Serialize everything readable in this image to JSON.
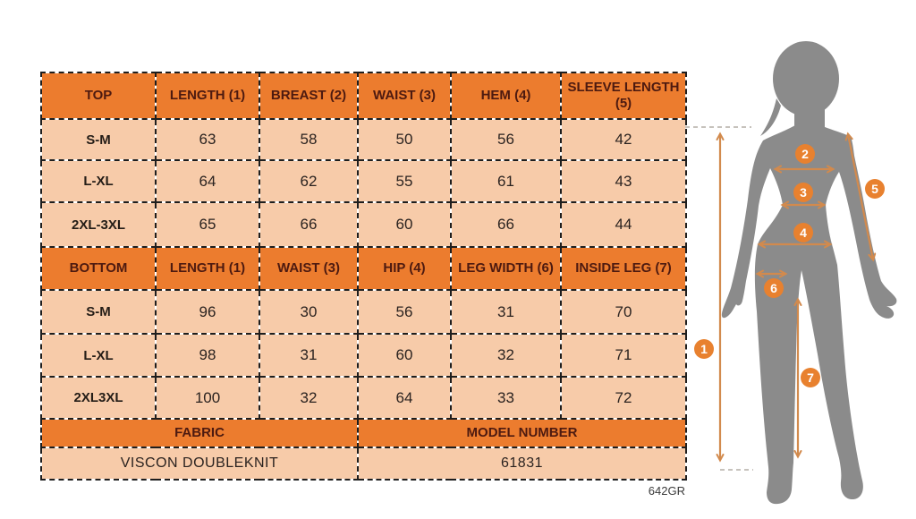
{
  "page": {
    "code": "642GR"
  },
  "colors": {
    "header_bg": "#ec7c2e",
    "cell_bg": "#f7cba9",
    "header_text": "#4d1a10",
    "cell_text": "#2b2320",
    "marker_circle": "#e8812f",
    "arrow": "#d28a4d",
    "silhouette": "#8b8b8b"
  },
  "size_chart": {
    "top": {
      "headers": [
        "TOP",
        "LENGTH (1)",
        "BREAST (2)",
        "WAIST (3)",
        "HEM (4)",
        "SLEEVE LENGTH (5)"
      ],
      "rows": [
        [
          "S-M",
          "63",
          "58",
          "50",
          "56",
          "42"
        ],
        [
          "L-XL",
          "64",
          "62",
          "55",
          "61",
          "43"
        ],
        [
          "2XL-3XL",
          "65",
          "66",
          "60",
          "66",
          "44"
        ]
      ]
    },
    "bottom": {
      "headers": [
        "BOTTOM",
        "LENGTH (1)",
        "WAIST (3)",
        "HIP (4)",
        "LEG WIDTH (6)",
        "INSIDE LEG (7)"
      ],
      "rows": [
        [
          "S-M",
          "96",
          "30",
          "56",
          "31",
          "70"
        ],
        [
          "L-XL",
          "98",
          "31",
          "60",
          "32",
          "71"
        ],
        [
          "2XL3XL",
          "100",
          "32",
          "64",
          "33",
          "72"
        ]
      ]
    },
    "footer": {
      "fabric_label": "FABRIC",
      "fabric_value": "VISCON DOUBLEKNIT",
      "model_label": "MODEL NUMBER",
      "model_value": "61831"
    }
  },
  "figure": {
    "markers": [
      "1",
      "2",
      "3",
      "4",
      "5",
      "6",
      "7"
    ]
  }
}
